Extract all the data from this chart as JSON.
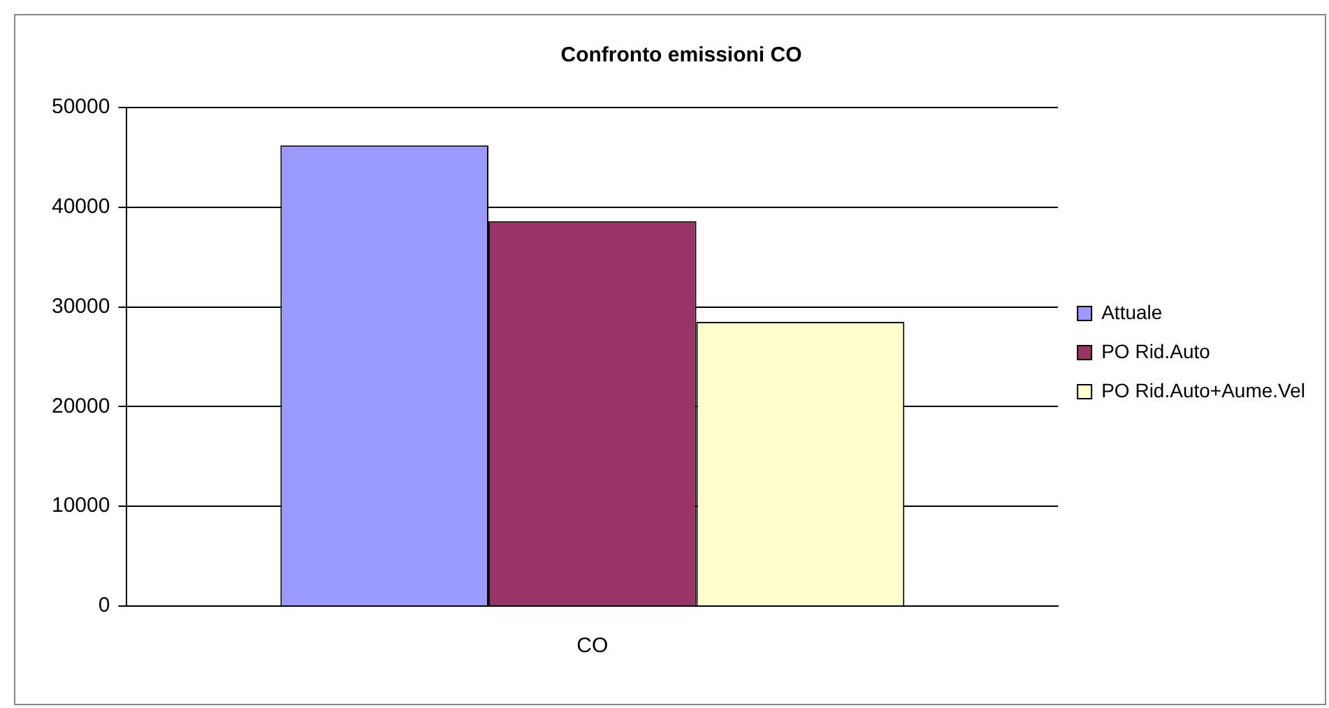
{
  "chart_data": {
    "type": "bar",
    "title": "Confronto emissioni CO",
    "categories": [
      "CO"
    ],
    "series": [
      {
        "name": "Attuale",
        "color": "#9999ff",
        "values": [
          46200
        ]
      },
      {
        "name": "PO Rid.Auto",
        "color": "#993366",
        "values": [
          38600
        ]
      },
      {
        "name": "PO Rid.Auto+Aume.Vel",
        "color": "#ffffcc",
        "values": [
          28500
        ]
      }
    ],
    "ylim": [
      0,
      50000
    ],
    "yticks": [
      0,
      10000,
      20000,
      30000,
      40000,
      50000
    ],
    "grid": "y",
    "legend": "right"
  }
}
